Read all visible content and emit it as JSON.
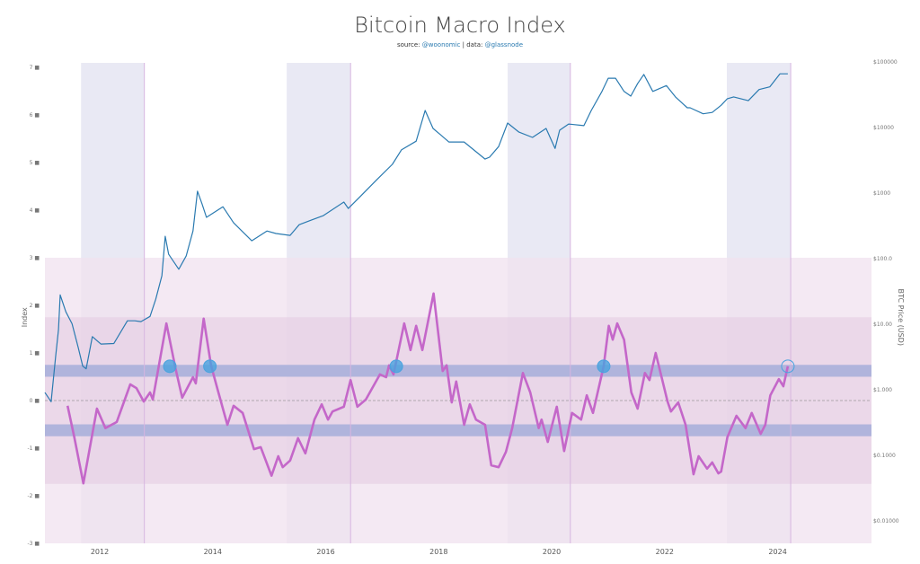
{
  "chart_data": {
    "type": "line",
    "title": "Bitcoin Macro Index",
    "subtitle": {
      "source_label": "source:",
      "source": "@woonomic",
      "sep": "|",
      "data_label": "data:",
      "data": "@glassnode"
    },
    "ylabel": "Index",
    "y2label": "BTC Price (USD)",
    "xlim": [
      2011.03,
      2025.66
    ],
    "ylim": [
      -3,
      7
    ],
    "y2lim_log10": [
      -2.34,
      5.0
    ],
    "y2_scale": "log",
    "x_ticks": [
      "2012",
      "2014",
      "2016",
      "2018",
      "2020",
      "2022",
      "2024"
    ],
    "y_ticks": [
      "7",
      "6",
      "5",
      "4",
      "3",
      "2",
      "1",
      "0",
      "-1",
      "-2",
      "-3"
    ],
    "y2_ticks": [
      "$100000",
      "$10000",
      "$1000",
      "$100.0",
      "$10.00",
      "$1.000",
      "$0.1000",
      "$0.01000"
    ],
    "colors": {
      "index": "#c467c9",
      "price": "#2a7ab0",
      "marker": "#4aa3df",
      "period_band": "#e9e9f4",
      "zone_outer": "#f0e2ef",
      "zone_inner": "#e5cde2",
      "signal_band": "#aab0da"
    },
    "zones": {
      "outer": [
        -3,
        3
      ],
      "inner": [
        -1.75,
        1.75
      ],
      "signal_bands": [
        [
          0.5,
          0.75
        ],
        [
          -0.75,
          -0.5
        ]
      ],
      "zero_line": 0
    },
    "period_bands": [
      [
        2011.67,
        2012.79
      ],
      [
        2015.31,
        2016.44
      ],
      [
        2019.22,
        2020.33
      ],
      [
        2023.1,
        2024.23
      ]
    ],
    "markers": [
      {
        "x": 2013.24,
        "y": 0.72,
        "filled": true
      },
      {
        "x": 2013.95,
        "y": 0.72,
        "filled": true
      },
      {
        "x": 2017.25,
        "y": 0.72,
        "filled": true
      },
      {
        "x": 2020.92,
        "y": 0.72,
        "filled": true
      },
      {
        "x": 2024.18,
        "y": 0.72,
        "filled": false
      }
    ],
    "series": [
      {
        "name": "Index",
        "axis": "left",
        "x": [
          2011.43,
          2011.55,
          2011.71,
          2011.95,
          2012.1,
          2012.3,
          2012.54,
          2012.65,
          2012.78,
          2012.89,
          2012.94,
          2013.18,
          2013.34,
          2013.46,
          2013.65,
          2013.7,
          2013.84,
          2013.97,
          2014.1,
          2014.26,
          2014.37,
          2014.53,
          2014.73,
          2014.85,
          2015.04,
          2015.16,
          2015.24,
          2015.37,
          2015.51,
          2015.64,
          2015.8,
          2015.93,
          2016.04,
          2016.12,
          2016.32,
          2016.44,
          2016.56,
          2016.71,
          2016.96,
          2017.07,
          2017.12,
          2017.2,
          2017.39,
          2017.5,
          2017.6,
          2017.71,
          2017.91,
          2018.07,
          2018.14,
          2018.23,
          2018.31,
          2018.45,
          2018.55,
          2018.66,
          2018.82,
          2018.93,
          2019.06,
          2019.19,
          2019.3,
          2019.49,
          2019.62,
          2019.77,
          2019.82,
          2019.93,
          2020.09,
          2020.22,
          2020.36,
          2020.52,
          2020.62,
          2020.73,
          2020.92,
          2021.01,
          2021.08,
          2021.16,
          2021.28,
          2021.41,
          2021.52,
          2021.65,
          2021.73,
          2021.84,
          2022.05,
          2022.11,
          2022.24,
          2022.37,
          2022.51,
          2022.6,
          2022.75,
          2022.84,
          2022.95,
          2023.0,
          2023.11,
          2023.27,
          2023.43,
          2023.54,
          2023.7,
          2023.78,
          2023.87,
          2024.02,
          2024.1,
          2024.18
        ],
        "y": [
          -0.11,
          -0.77,
          -1.74,
          -0.17,
          -0.58,
          -0.45,
          0.34,
          0.26,
          -0.02,
          0.17,
          0.02,
          1.62,
          0.68,
          0.06,
          0.49,
          0.36,
          1.72,
          0.74,
          0.17,
          -0.51,
          -0.11,
          -0.26,
          -1.02,
          -0.98,
          -1.58,
          -1.17,
          -1.4,
          -1.26,
          -0.79,
          -1.11,
          -0.4,
          -0.08,
          -0.4,
          -0.23,
          -0.13,
          0.43,
          -0.13,
          0.02,
          0.55,
          0.49,
          0.74,
          0.55,
          1.62,
          1.06,
          1.57,
          1.06,
          2.25,
          0.62,
          0.74,
          -0.04,
          0.4,
          -0.51,
          -0.08,
          -0.4,
          -0.51,
          -1.36,
          -1.4,
          -1.08,
          -0.58,
          0.58,
          0.17,
          -0.58,
          -0.4,
          -0.87,
          -0.13,
          -1.06,
          -0.26,
          -0.4,
          0.11,
          -0.26,
          0.72,
          1.57,
          1.28,
          1.62,
          1.28,
          0.17,
          -0.17,
          0.58,
          0.43,
          1.0,
          -0.02,
          -0.23,
          -0.04,
          -0.51,
          -1.55,
          -1.17,
          -1.43,
          -1.3,
          -1.53,
          -1.49,
          -0.77,
          -0.32,
          -0.58,
          -0.26,
          -0.7,
          -0.51,
          0.11,
          0.45,
          0.3,
          0.72
        ]
      },
      {
        "name": "BTC Price (USD)",
        "axis": "right",
        "x": [
          2011.03,
          2011.14,
          2011.22,
          2011.27,
          2011.3,
          2011.4,
          2011.51,
          2011.62,
          2011.7,
          2011.76,
          2011.87,
          2012.02,
          2012.25,
          2012.49,
          2012.62,
          2012.73,
          2012.89,
          2012.99,
          2013.1,
          2013.16,
          2013.22,
          2013.4,
          2013.53,
          2013.65,
          2013.73,
          2013.81,
          2013.89,
          2014.18,
          2014.37,
          2014.69,
          2014.96,
          2015.12,
          2015.37,
          2015.53,
          2015.75,
          2015.96,
          2016.32,
          2016.4,
          2016.59,
          2016.91,
          2017.18,
          2017.34,
          2017.6,
          2017.76,
          2017.9,
          2018.03,
          2018.18,
          2018.45,
          2018.82,
          2018.9,
          2019.06,
          2019.22,
          2019.42,
          2019.66,
          2019.9,
          2020.06,
          2020.14,
          2020.3,
          2020.57,
          2020.7,
          2020.89,
          2021.0,
          2021.13,
          2021.28,
          2021.4,
          2021.52,
          2021.63,
          2021.79,
          2022.03,
          2022.19,
          2022.4,
          2022.45,
          2022.68,
          2022.84,
          2023.0,
          2023.11,
          2023.22,
          2023.48,
          2023.67,
          2023.86,
          2024.04,
          2024.18
        ],
        "y": [
          0.91,
          0.66,
          3.2,
          8.3,
          28,
          15.5,
          10.2,
          4.4,
          2.3,
          2.1,
          6.5,
          5.0,
          5.1,
          11.3,
          11.3,
          11,
          13.2,
          24,
          55,
          220,
          117,
          69,
          110,
          265,
          1070,
          690,
          427,
          620,
          353,
          188,
          265,
          242,
          227,
          330,
          390,
          455,
          730,
          585,
          850,
          1620,
          2750,
          4560,
          6200,
          18200,
          9700,
          7800,
          6030,
          6030,
          3310,
          3540,
          5130,
          11700,
          8520,
          7080,
          9700,
          4800,
          9100,
          11300,
          10700,
          18200,
          35500,
          56500,
          56500,
          35500,
          30200,
          46800,
          64500,
          35500,
          43700,
          29300,
          20000,
          20000,
          16200,
          17000,
          21900,
          27500,
          29300,
          25700,
          38000,
          41700,
          66000,
          66000
        ]
      }
    ]
  }
}
